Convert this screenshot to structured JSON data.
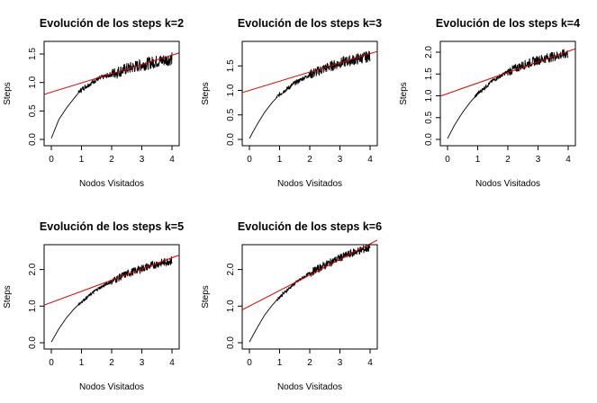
{
  "chart_data": [
    {
      "type": "line",
      "title": "Evolución de los steps k=2",
      "xlabel": "Nodos Visitados",
      "ylabel": "Steps",
      "xlim": [
        0,
        4
      ],
      "ylim": [
        0,
        1.5
      ],
      "xticks": [
        "0",
        "1",
        "2",
        "3",
        "4"
      ],
      "yticks": [
        "0.0",
        "0.5",
        "1.0",
        "1.5"
      ],
      "series": [
        {
          "x": [
            0,
            0.25,
            0.5,
            0.75,
            1,
            1.5,
            2,
            2.5,
            3,
            3.5,
            4
          ],
          "values": [
            0.02,
            0.35,
            0.55,
            0.72,
            0.88,
            1.05,
            1.15,
            1.24,
            1.31,
            1.37,
            1.42
          ],
          "color": "#000000"
        },
        {
          "x": [
            0,
            4
          ],
          "values": [
            0.83,
            1.48
          ],
          "color": "#cc0000"
        }
      ]
    },
    {
      "type": "line",
      "title": "Evolución de los steps k=3",
      "xlabel": "Nodos Visitados",
      "ylabel": "Steps",
      "xlim": [
        0,
        4
      ],
      "ylim": [
        0,
        1.5
      ],
      "xticks": [
        "0",
        "1",
        "2",
        "3",
        "4"
      ],
      "yticks": [
        "0.0",
        "0.5",
        "1.0",
        "1.5"
      ],
      "series": [
        {
          "x": [
            0,
            0.25,
            0.5,
            0.75,
            1,
            1.5,
            2,
            2.5,
            3,
            3.5,
            4
          ],
          "values": [
            0.02,
            0.3,
            0.55,
            0.75,
            0.92,
            1.15,
            1.32,
            1.45,
            1.56,
            1.63,
            1.7
          ],
          "color": "#000000"
        },
        {
          "x": [
            0,
            4
          ],
          "values": [
            1.0,
            1.75
          ],
          "color": "#cc0000"
        }
      ]
    },
    {
      "type": "line",
      "title": "Evolución de los steps k=4",
      "xlabel": "Nodos Visitados",
      "ylabel": "Steps",
      "xlim": [
        0,
        4
      ],
      "ylim": [
        0,
        2.0
      ],
      "xticks": [
        "0",
        "1",
        "2",
        "3",
        "4"
      ],
      "yticks": [
        "0.0",
        "0.5",
        "1.0",
        "1.5",
        "2.0"
      ],
      "series": [
        {
          "x": [
            0,
            0.25,
            0.5,
            0.75,
            1,
            1.5,
            2,
            2.5,
            3,
            3.5,
            4
          ],
          "values": [
            0.02,
            0.35,
            0.62,
            0.85,
            1.05,
            1.35,
            1.55,
            1.7,
            1.82,
            1.9,
            1.97
          ],
          "color": "#000000"
        },
        {
          "x": [
            0,
            4
          ],
          "values": [
            1.05,
            2.02
          ],
          "color": "#cc0000"
        }
      ]
    },
    {
      "type": "line",
      "title": "Evolución de los steps k=5",
      "xlabel": "Nodos Visitados",
      "ylabel": "Steps",
      "xlim": [
        0,
        4
      ],
      "ylim": [
        0,
        2.0
      ],
      "xticks": [
        "0",
        "1",
        "2",
        "3",
        "4"
      ],
      "yticks": [
        "0.0",
        "1.0",
        "2.0"
      ],
      "series": [
        {
          "x": [
            0,
            0.25,
            0.5,
            0.75,
            1,
            1.5,
            2,
            2.5,
            3,
            3.5,
            4
          ],
          "values": [
            0.02,
            0.38,
            0.68,
            0.92,
            1.12,
            1.45,
            1.68,
            1.88,
            2.03,
            2.15,
            2.25
          ],
          "color": "#000000"
        },
        {
          "x": [
            0,
            4
          ],
          "values": [
            1.1,
            2.32
          ],
          "color": "#cc0000"
        }
      ]
    },
    {
      "type": "line",
      "title": "Evolución de los steps k=6",
      "xlabel": "Nodos Visitados",
      "ylabel": "Steps",
      "xlim": [
        0,
        4
      ],
      "ylim": [
        0,
        2.0
      ],
      "xticks": [
        "0",
        "1",
        "2",
        "3",
        "4"
      ],
      "yticks": [
        "0.0",
        "1.0",
        "2.0"
      ],
      "series": [
        {
          "x": [
            0,
            0.25,
            0.5,
            0.75,
            1,
            1.5,
            2,
            2.5,
            3,
            3.5,
            4
          ],
          "values": [
            0.02,
            0.4,
            0.75,
            1.02,
            1.25,
            1.62,
            1.9,
            2.12,
            2.32,
            2.48,
            2.6
          ],
          "color": "#000000"
        },
        {
          "x": [
            0,
            4
          ],
          "values": [
            1.0,
            2.7
          ],
          "color": "#cc0000"
        }
      ]
    }
  ]
}
